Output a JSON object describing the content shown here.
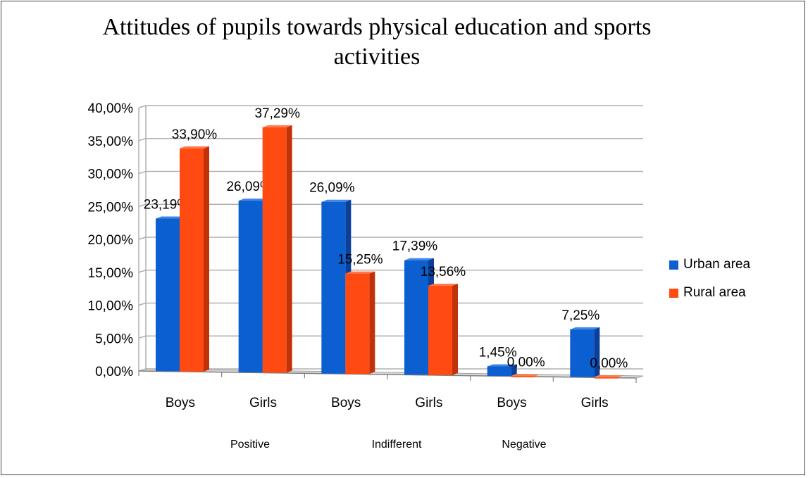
{
  "colors": {
    "urban": "#0b5fd1",
    "urban_side": "#0a3f9a",
    "urban_top": "#3f86e6",
    "rural": "#ff4a12",
    "rural_side": "#c23208",
    "rural_top": "#ff7a4a"
  },
  "chart_data": {
    "type": "bar",
    "title": "Attitudes of pupils towards physical education and sports activities",
    "categories": [
      "Boys",
      "Girls",
      "Boys",
      "Girls",
      "Boys",
      "Girls"
    ],
    "groups": [
      {
        "label": "Positive",
        "categories": [
          0,
          1
        ]
      },
      {
        "label": "Indifferent",
        "categories": [
          2,
          3
        ]
      },
      {
        "label": "Negative",
        "categories": [
          4,
          5
        ]
      }
    ],
    "series": [
      {
        "name": "Urban area",
        "values": [
          23.19,
          26.09,
          26.09,
          17.39,
          1.45,
          7.25
        ],
        "labels": [
          "23,19%",
          "26,09%",
          "26,09%",
          "17,39%",
          "1,45%",
          "7,25%"
        ]
      },
      {
        "name": "Rural area",
        "values": [
          33.9,
          37.29,
          15.25,
          13.56,
          0.0,
          0.0
        ],
        "labels": [
          "33,90%",
          "37,29%",
          "15,25%",
          "13,56%",
          "0,00%",
          "0,00%"
        ]
      }
    ],
    "ylim": [
      0,
      40
    ],
    "yticks": [
      "0,00%",
      "5,00%",
      "10,00%",
      "15,00%",
      "20,00%",
      "25,00%",
      "30,00%",
      "35,00%",
      "40,00%"
    ],
    "grid": true,
    "legend": "right"
  }
}
